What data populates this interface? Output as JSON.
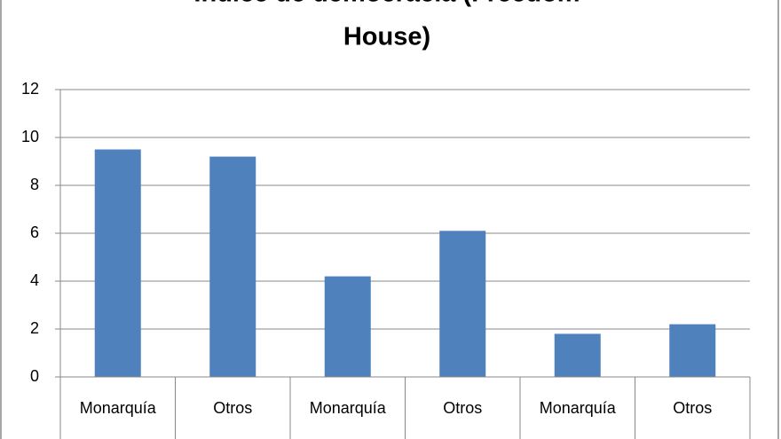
{
  "chart_data": {
    "type": "bar",
    "title_lines": [
      "Índice de democracia (Freedom",
      "House)"
    ],
    "categories": [
      "Monarquía",
      "Otros",
      "Monarquía",
      "Otros",
      "Monarquía",
      "Otros"
    ],
    "values": [
      9.5,
      9.2,
      4.2,
      6.1,
      1.8,
      2.2
    ],
    "color": "#4f81bd",
    "ylim": [
      0,
      12
    ],
    "yticks": [
      0,
      2,
      4,
      6,
      8,
      10,
      12
    ],
    "grid": true
  }
}
